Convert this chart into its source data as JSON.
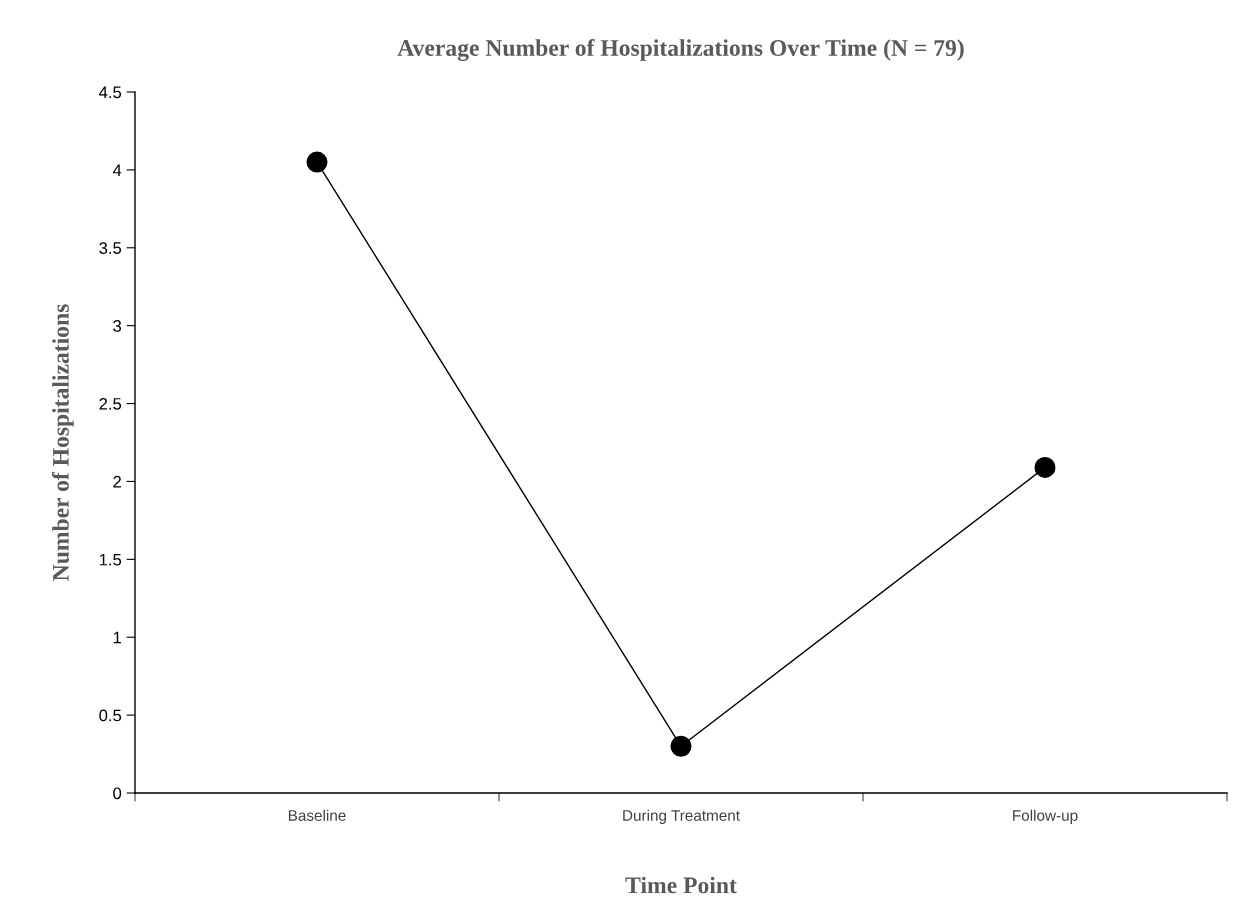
{
  "chart_data": {
    "type": "line",
    "title": "Average Number of Hospitalizations Over Time (N = 79)",
    "xlabel": "Time Point",
    "ylabel": "Number of Hospitalizations",
    "categories": [
      "Baseline",
      "During Treatment",
      "Follow-up"
    ],
    "series": [
      {
        "color": "#000000",
        "values": [
          4.05,
          0.3,
          2.09
        ]
      }
    ],
    "ylim": [
      0,
      4.5
    ],
    "yticks": [
      0,
      0.5,
      1,
      1.5,
      2,
      2.5,
      3,
      3.5,
      4,
      4.5
    ],
    "grid": false,
    "legend": false,
    "marker": "circle",
    "line_style": "solid"
  }
}
